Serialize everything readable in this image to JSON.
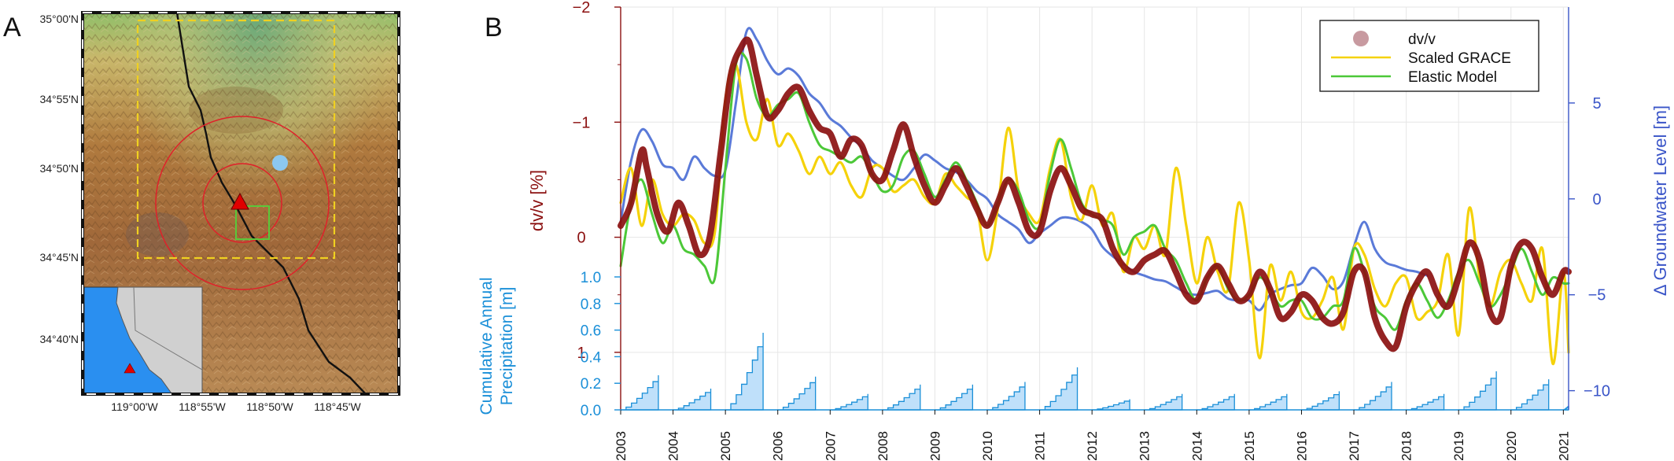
{
  "panels": {
    "a_label": "A",
    "b_label": "B"
  },
  "map": {
    "lat_ticks": [
      "35°00'N",
      "34°55'N",
      "34°50'N",
      "34°45'N",
      "34°40'N"
    ],
    "lon_ticks": [
      "119°00'W",
      "118°55'W",
      "118°50'W",
      "118°45'W"
    ],
    "colors": {
      "study_box": "#f0d020",
      "circles": "#e0202a",
      "inner_box": "#5ac83a",
      "fault": "#111111",
      "well": "#8cc8f0",
      "station": "#e00000",
      "ocean": "#2a8ff0",
      "land_inset": "#d0d0d0"
    }
  },
  "chart_data": {
    "type": "line",
    "x_range": [
      2003,
      2021.1
    ],
    "x_ticks": [
      "2003",
      "2004",
      "2005",
      "2006",
      "2007",
      "2008",
      "2009",
      "2010",
      "2011",
      "2012",
      "2013",
      "2014",
      "2015",
      "2016",
      "2017",
      "2018",
      "2019",
      "2020",
      "2021"
    ],
    "left_axis": {
      "label": "dv/v [%]",
      "range": [
        -2,
        1.5
      ],
      "inverted": true,
      "ticks": [
        "−2",
        "−1",
        "0",
        "1"
      ],
      "color": "#8b1010"
    },
    "right_axis": {
      "label": "Δ Groundwater Level [m]",
      "range": [
        -11,
        10
      ],
      "ticks": [
        "5",
        "0",
        "−5",
        "−10"
      ],
      "color": "#3a55c8"
    },
    "precip_axis": {
      "label_line1": "Cumulative Annual",
      "label_line2": "Precipitation [m]",
      "range": [
        0,
        1.0
      ],
      "ticks": [
        "1.0",
        "0.8",
        "0.6",
        "0.4",
        "0.2",
        "0.0"
      ],
      "color": "#1a8fd8"
    },
    "legend": [
      {
        "name": "dv/v",
        "color": "#c89aa0",
        "marker": "circle"
      },
      {
        "name": "Scaled GRACE",
        "color": "#f5d20a",
        "marker": "line"
      },
      {
        "name": "Elastic Model",
        "color": "#4cc838",
        "marker": "line"
      }
    ],
    "series": [
      {
        "name": "dv/v",
        "axis": "left",
        "color": "#8b1010",
        "x": [
          2003.0,
          2003.2,
          2003.4,
          2003.5,
          2003.7,
          2003.9,
          2004.1,
          2004.3,
          2004.5,
          2004.7,
          2004.9,
          2005.1,
          2005.3,
          2005.45,
          2005.6,
          2005.8,
          2006.0,
          2006.2,
          2006.4,
          2006.6,
          2006.8,
          2007.0,
          2007.2,
          2007.4,
          2007.6,
          2007.8,
          2008.0,
          2008.2,
          2008.4,
          2008.6,
          2008.8,
          2009.0,
          2009.2,
          2009.4,
          2009.6,
          2009.8,
          2010.0,
          2010.2,
          2010.4,
          2010.6,
          2010.8,
          2011.0,
          2011.2,
          2011.4,
          2011.6,
          2011.8,
          2012.0,
          2012.2,
          2012.4,
          2012.6,
          2012.8,
          2013.0,
          2013.2,
          2013.4,
          2013.6,
          2013.8,
          2014.0,
          2014.2,
          2014.4,
          2014.6,
          2014.8,
          2015.0,
          2015.2,
          2015.4,
          2015.6,
          2015.8,
          2016.0,
          2016.2,
          2016.4,
          2016.6,
          2016.8,
          2017.0,
          2017.2,
          2017.4,
          2017.6,
          2017.8,
          2018.0,
          2018.2,
          2018.4,
          2018.6,
          2018.8,
          2019.0,
          2019.2,
          2019.4,
          2019.6,
          2019.8,
          2020.0,
          2020.2,
          2020.4,
          2020.6,
          2020.8,
          2021.0,
          2021.1
        ],
        "values": [
          -0.1,
          -0.3,
          -0.75,
          -0.6,
          -0.2,
          -0.05,
          -0.3,
          -0.1,
          0.15,
          0.0,
          -0.7,
          -1.4,
          -1.65,
          -1.7,
          -1.4,
          -1.05,
          -1.1,
          -1.25,
          -1.3,
          -1.1,
          -0.95,
          -0.9,
          -0.7,
          -0.85,
          -0.8,
          -0.55,
          -0.5,
          -0.75,
          -0.98,
          -0.7,
          -0.45,
          -0.3,
          -0.45,
          -0.6,
          -0.45,
          -0.25,
          -0.1,
          -0.3,
          -0.5,
          -0.3,
          -0.05,
          -0.05,
          -0.4,
          -0.6,
          -0.45,
          -0.25,
          -0.2,
          -0.15,
          0.1,
          0.25,
          0.3,
          0.2,
          0.15,
          0.12,
          0.3,
          0.5,
          0.55,
          0.35,
          0.25,
          0.4,
          0.55,
          0.5,
          0.3,
          0.45,
          0.7,
          0.65,
          0.5,
          0.55,
          0.7,
          0.75,
          0.65,
          0.3,
          0.3,
          0.7,
          0.9,
          0.95,
          0.6,
          0.4,
          0.3,
          0.5,
          0.6,
          0.35,
          0.05,
          0.2,
          0.65,
          0.7,
          0.25,
          0.05,
          0.1,
          0.35,
          0.5,
          0.3,
          0.3
        ]
      },
      {
        "name": "Scaled GRACE",
        "axis": "left",
        "color": "#f5d20a",
        "x": [
          2003.0,
          2003.2,
          2003.4,
          2003.6,
          2003.8,
          2004.0,
          2004.2,
          2004.4,
          2004.6,
          2004.8,
          2005.0,
          2005.2,
          2005.4,
          2005.6,
          2005.8,
          2006.0,
          2006.2,
          2006.4,
          2006.6,
          2006.8,
          2007.0,
          2007.2,
          2007.4,
          2007.6,
          2007.8,
          2008.0,
          2008.2,
          2008.4,
          2008.6,
          2008.8,
          2009.0,
          2009.2,
          2009.4,
          2009.6,
          2009.8,
          2010.0,
          2010.2,
          2010.4,
          2010.6,
          2010.8,
          2011.0,
          2011.2,
          2011.4,
          2011.6,
          2011.8,
          2012.0,
          2012.2,
          2012.4,
          2012.6,
          2012.8,
          2013.0,
          2013.2,
          2013.4,
          2013.6,
          2013.8,
          2014.0,
          2014.2,
          2014.4,
          2014.6,
          2014.8,
          2015.0,
          2015.2,
          2015.4,
          2015.6,
          2015.8,
          2016.0,
          2016.2,
          2016.4,
          2016.6,
          2016.8,
          2017.0,
          2017.2,
          2017.4,
          2017.6,
          2017.8,
          2018.0,
          2018.2,
          2018.4,
          2018.6,
          2018.8,
          2019.0,
          2019.2,
          2019.4,
          2019.6,
          2019.8,
          2020.0,
          2020.2,
          2020.4,
          2020.6,
          2020.8,
          2021.0,
          2021.1
        ],
        "values": [
          -0.3,
          -0.6,
          -0.1,
          -0.5,
          -0.2,
          -0.1,
          -0.2,
          -0.15,
          0.05,
          -0.05,
          -1.2,
          -1.5,
          -1.0,
          -0.85,
          -1.2,
          -0.8,
          -0.9,
          -0.75,
          -0.55,
          -0.7,
          -0.55,
          -0.65,
          -0.45,
          -0.35,
          -0.6,
          -0.6,
          -0.4,
          -0.45,
          -0.5,
          -0.35,
          -0.3,
          -0.55,
          -0.45,
          -0.35,
          -0.25,
          0.2,
          -0.25,
          -0.95,
          -0.4,
          -0.2,
          -0.15,
          -0.6,
          -0.85,
          -0.35,
          -0.15,
          -0.45,
          -0.1,
          -0.2,
          0.3,
          0.0,
          0.1,
          -0.1,
          0.15,
          -0.6,
          -0.1,
          0.4,
          0.0,
          0.3,
          0.45,
          -0.3,
          0.2,
          1.05,
          0.25,
          0.55,
          0.3,
          0.65,
          0.7,
          0.55,
          0.35,
          0.8,
          0.1,
          0.15,
          0.45,
          0.6,
          0.4,
          0.35,
          0.7,
          0.65,
          0.55,
          0.15,
          0.85,
          -0.25,
          0.35,
          0.6,
          0.3,
          0.2,
          0.4,
          0.55,
          0.1,
          1.1,
          0.3,
          1.0
        ]
      },
      {
        "name": "Elastic Model",
        "axis": "left",
        "color": "#4cc838",
        "x": [
          2003.0,
          2003.2,
          2003.4,
          2003.6,
          2003.8,
          2004.0,
          2004.2,
          2004.4,
          2004.6,
          2004.8,
          2005.0,
          2005.2,
          2005.4,
          2005.6,
          2005.8,
          2006.0,
          2006.2,
          2006.4,
          2006.6,
          2006.8,
          2007.0,
          2007.2,
          2007.4,
          2007.6,
          2007.8,
          2008.0,
          2008.2,
          2008.4,
          2008.6,
          2008.8,
          2009.0,
          2009.2,
          2009.4,
          2009.6,
          2009.8,
          2010.0,
          2010.2,
          2010.4,
          2010.6,
          2010.8,
          2011.0,
          2011.2,
          2011.4,
          2011.6,
          2011.8,
          2012.0,
          2012.2,
          2012.4,
          2012.6,
          2012.8,
          2013.0,
          2013.2,
          2013.4,
          2013.6,
          2013.8,
          2014.0,
          2014.2,
          2014.4,
          2014.6,
          2014.8,
          2015.0,
          2015.2,
          2015.4,
          2015.6,
          2015.8,
          2016.0,
          2016.2,
          2016.4,
          2016.6,
          2016.8,
          2017.0,
          2017.2,
          2017.4,
          2017.6,
          2017.8,
          2018.0,
          2018.2,
          2018.4,
          2018.6,
          2018.8,
          2019.0,
          2019.2,
          2019.4,
          2019.6,
          2019.8,
          2020.0,
          2020.2,
          2020.4,
          2020.6,
          2020.8,
          2021.0,
          2021.1
        ],
        "values": [
          0.25,
          -0.3,
          -0.5,
          -0.2,
          0.05,
          -0.1,
          0.1,
          0.15,
          0.25,
          0.35,
          -0.6,
          -1.5,
          -1.55,
          -1.2,
          -1.05,
          -1.15,
          -1.2,
          -1.25,
          -1.0,
          -0.8,
          -0.75,
          -0.7,
          -0.65,
          -0.7,
          -0.55,
          -0.4,
          -0.45,
          -0.7,
          -0.75,
          -0.55,
          -0.35,
          -0.5,
          -0.65,
          -0.5,
          -0.3,
          -0.1,
          -0.3,
          -0.5,
          -0.4,
          -0.15,
          -0.1,
          -0.55,
          -0.85,
          -0.6,
          -0.3,
          -0.2,
          -0.15,
          -0.1,
          0.15,
          0.0,
          -0.05,
          -0.1,
          0.1,
          0.2,
          0.4,
          0.55,
          0.35,
          0.25,
          0.45,
          0.55,
          0.5,
          0.35,
          0.45,
          0.6,
          0.55,
          0.55,
          0.7,
          0.7,
          0.6,
          0.55,
          0.1,
          0.3,
          0.6,
          0.7,
          0.8,
          0.55,
          0.4,
          0.55,
          0.7,
          0.55,
          0.3,
          0.2,
          0.4,
          0.6,
          0.5,
          0.3,
          0.1,
          0.3,
          0.5,
          0.35,
          0.4,
          0.4
        ]
      },
      {
        "name": "Groundwater",
        "axis": "right",
        "color": "#5a7ad8",
        "x": [
          2003.0,
          2003.2,
          2003.4,
          2003.6,
          2003.8,
          2004.0,
          2004.2,
          2004.4,
          2004.6,
          2004.8,
          2005.0,
          2005.2,
          2005.4,
          2005.6,
          2005.8,
          2006.0,
          2006.2,
          2006.4,
          2006.6,
          2006.8,
          2007.0,
          2007.2,
          2007.4,
          2007.6,
          2007.8,
          2008.0,
          2008.2,
          2008.4,
          2008.6,
          2008.8,
          2009.0,
          2009.2,
          2009.4,
          2009.6,
          2009.8,
          2010.0,
          2010.2,
          2010.4,
          2010.6,
          2010.8,
          2011.0,
          2011.2,
          2011.4,
          2011.6,
          2011.8,
          2012.0,
          2012.2,
          2012.4,
          2012.6,
          2012.8,
          2013.0,
          2013.2,
          2013.4,
          2013.6,
          2013.8,
          2014.0,
          2014.2,
          2014.4,
          2014.6,
          2014.8,
          2015.0,
          2015.2,
          2015.4,
          2015.6,
          2015.8,
          2016.0,
          2016.2,
          2016.4,
          2016.6,
          2016.8,
          2017.0,
          2017.2,
          2017.4,
          2017.6,
          2017.8,
          2018.0,
          2018.2,
          2018.4
        ],
        "values": [
          -1.2,
          2.0,
          3.6,
          3.0,
          1.8,
          1.6,
          1.0,
          2.2,
          1.6,
          1.2,
          1.5,
          5.0,
          8.7,
          8.3,
          7.2,
          6.5,
          6.8,
          6.4,
          5.5,
          5.0,
          4.2,
          3.8,
          3.2,
          2.7,
          2.0,
          1.6,
          1.2,
          1.0,
          1.6,
          2.3,
          2.0,
          1.6,
          1.4,
          1.0,
          0.4,
          0.0,
          -0.8,
          -1.2,
          -1.6,
          -2.3,
          -1.8,
          -1.4,
          -1.0,
          -1.0,
          -1.2,
          -1.6,
          -2.5,
          -3.0,
          -3.4,
          -3.8,
          -4.0,
          -4.2,
          -4.3,
          -4.6,
          -4.9,
          -5.0,
          -4.9,
          -4.8,
          -5.2,
          -5.3,
          -5.3,
          -5.8,
          -5.0,
          -4.7,
          -4.5,
          -4.4,
          -3.6,
          -4.0,
          -4.7,
          -4.3,
          -2.5,
          -1.2,
          -2.6,
          -3.3,
          -3.5,
          -3.7,
          -3.8,
          -4.0
        ]
      }
    ],
    "precipitation": {
      "years": [
        2003,
        2004,
        2005,
        2006,
        2007,
        2008,
        2009,
        2010,
        2011,
        2012,
        2013,
        2014,
        2015,
        2016,
        2017,
        2018,
        2019,
        2020,
        2021
      ],
      "totals": [
        0.26,
        0.16,
        0.58,
        0.25,
        0.12,
        0.19,
        0.19,
        0.21,
        0.32,
        0.08,
        0.12,
        0.12,
        0.12,
        0.14,
        0.21,
        0.12,
        0.29,
        0.23,
        0.03
      ]
    }
  }
}
